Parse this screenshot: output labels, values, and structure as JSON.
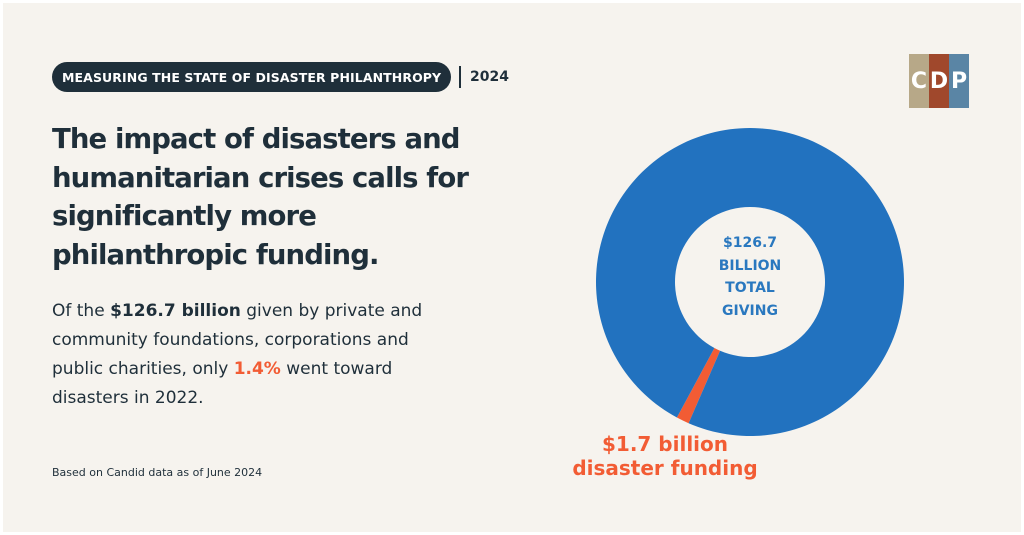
{
  "header": {
    "tag": "MEASURING THE STATE OF DISASTER PHILANTHROPY",
    "year": "2024"
  },
  "logo": {
    "letters": [
      "C",
      "D",
      "P"
    ],
    "colors": [
      "#b7a888",
      "#a0482c",
      "#5a85a5"
    ]
  },
  "headline": "The impact of disasters and humanitarian crises calls for significantly more philanthropic funding.",
  "body": {
    "part1": "Of the ",
    "total": "$126.7 billion",
    "part2": " given by private and community foundations, corporations and public charities, only ",
    "percent": "1.4%",
    "part3": " went toward disasters in 2022."
  },
  "source": "Based on Candid data as of June 2024",
  "chart_data": {
    "type": "pie",
    "donut": true,
    "slices": [
      {
        "label": "$1.7 billion disaster funding",
        "value": 1.7,
        "color": "#f25c34"
      },
      {
        "label": "$126.7 BILLION TOTAL GIVING",
        "value": 125.0,
        "color": "#2272bf"
      }
    ],
    "center_label": [
      "$126.7",
      "BILLION",
      "TOTAL",
      "GIVING"
    ],
    "callout": [
      "$1.7 billion",
      "disaster funding"
    ],
    "legend": "none"
  },
  "colors": {
    "background": "#f6f3ee",
    "navy": "#1f2f3a",
    "blue": "#2272bf",
    "orange": "#f25c34"
  }
}
